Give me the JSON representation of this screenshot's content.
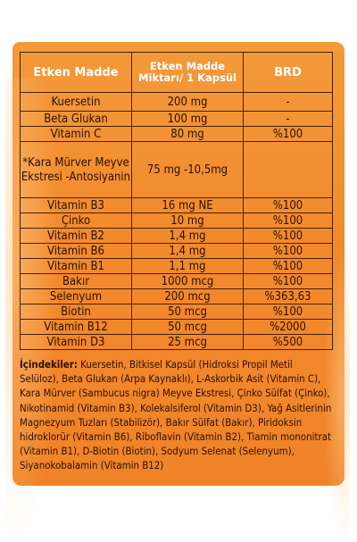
{
  "table": {
    "headers": {
      "active": "Etken Madde",
      "amount": "Etken Madde Miktarı/ 1 Kapsül",
      "rda": "BRD"
    },
    "rows": [
      {
        "name": "Kuersetin",
        "amount": "200 mg",
        "rda": "-"
      },
      {
        "name": "Beta Glukan",
        "amount": "100 mg",
        "rda": "-"
      },
      {
        "name": "Vitamin C",
        "amount": "80 mg",
        "rda": "%100"
      },
      {
        "name": "*Kara Mürver Meyve Ekstresi -Antosiyanin",
        "amount": "75 mg -10,5mg",
        "rda": ""
      },
      {
        "name": "Vitamin B3",
        "amount": "16 mg NE",
        "rda": "%100"
      },
      {
        "name": "Çinko",
        "amount": "10 mg",
        "rda": "%100"
      },
      {
        "name": "Vitamin B2",
        "amount": "1,4 mg",
        "rda": "%100"
      },
      {
        "name": "Vitamin B6",
        "amount": "1,4 mg",
        "rda": "%100"
      },
      {
        "name": "Vitamin B1",
        "amount": "1,1 mg",
        "rda": "%100"
      },
      {
        "name": "Bakır",
        "amount": "1000 mcg",
        "rda": "%100"
      },
      {
        "name": "Selenyum",
        "amount": "200 mcg",
        "rda": "%363,63"
      },
      {
        "name": "Biotin",
        "amount": "50 mcg",
        "rda": "%100"
      },
      {
        "name": "Vitamin B12",
        "amount": "50 mcg",
        "rda": "%2000"
      },
      {
        "name": "Vitamin D3",
        "amount": "25 mcg",
        "rda": "%500"
      }
    ]
  },
  "ingredients": {
    "label": "İçindekiler:",
    "text": " Kuersetin, Bitkisel Kapsül (Hidroksi Propil Metil Selüloz), Beta Glukan (Arpa Kaynaklı), L-Askorbik Asit (Vitamin C), Kara Mürver (Sambucus nigra) Meyve Ekstresi, Çinko Sülfat (Çinko), Nikotinamid (Vitamin B3), Kolekalsiferol (Vitamin D3), Yağ Asitlerinin Magnezyum Tuzları (Stabilizör), Bakır Sülfat (Bakır), Piridoksin hidroklorür (Vitamin B6), Riboflavin (Vitamin B2), Tiamin mononitrat (Vitamin B1), D-Biotin (Biotin), Sodyum Selenat (Selenyum), Siyanokobalamin (Vitamin B12)"
  }
}
